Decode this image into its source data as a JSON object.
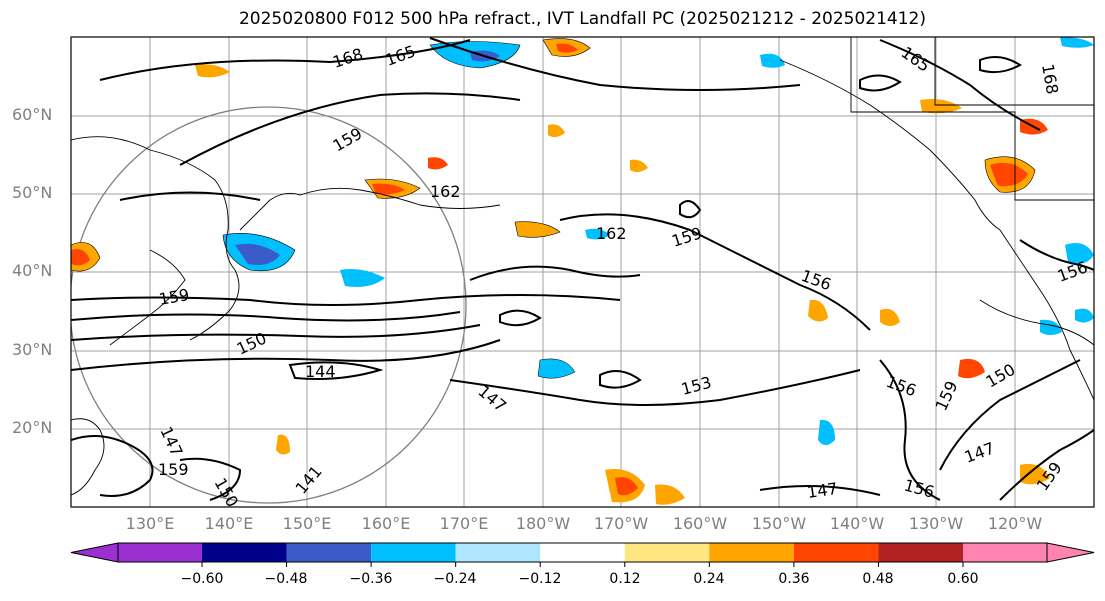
{
  "title": "2025020800 F012 500 hPa refract., IVT Landfall PC (2025021212 - 2025021412)",
  "latitude_labels": [
    "60°N",
    "50°N",
    "40°N",
    "30°N",
    "20°N"
  ],
  "longitude_labels": [
    "130°E",
    "140°E",
    "150°E",
    "160°E",
    "170°E",
    "180°W",
    "170°W",
    "160°W",
    "150°W",
    "140°W",
    "130°W",
    "120°W"
  ],
  "colorbar": {
    "colors": [
      "#9b30d0",
      "#00008b",
      "#3a5bc8",
      "#00bfff",
      "#aee6ff",
      "#ffffff",
      "#ffe680",
      "#ffa500",
      "#ff4500",
      "#b22222",
      "#ff85b0"
    ],
    "tick_labels": [
      "−0.60",
      "−0.48",
      "−0.36",
      "−0.24",
      "−0.12",
      "0.12",
      "0.24",
      "0.36",
      "0.48",
      "0.60"
    ]
  },
  "contour_labels": [
    {
      "text": "168"
    },
    {
      "text": "165"
    },
    {
      "text": "159"
    },
    {
      "text": "162"
    },
    {
      "text": "162"
    },
    {
      "text": "159"
    },
    {
      "text": "156"
    },
    {
      "text": "159"
    },
    {
      "text": "150"
    },
    {
      "text": "144"
    },
    {
      "text": "147"
    },
    {
      "text": "153"
    },
    {
      "text": "156"
    },
    {
      "text": "159"
    },
    {
      "text": "150"
    },
    {
      "text": "147"
    },
    {
      "text": "147"
    },
    {
      "text": "156"
    },
    {
      "text": "147"
    },
    {
      "text": "159"
    },
    {
      "text": "165"
    },
    {
      "text": "168"
    },
    {
      "text": "156"
    },
    {
      "text": "159"
    },
    {
      "text": "141"
    },
    {
      "text": "150"
    }
  ]
}
